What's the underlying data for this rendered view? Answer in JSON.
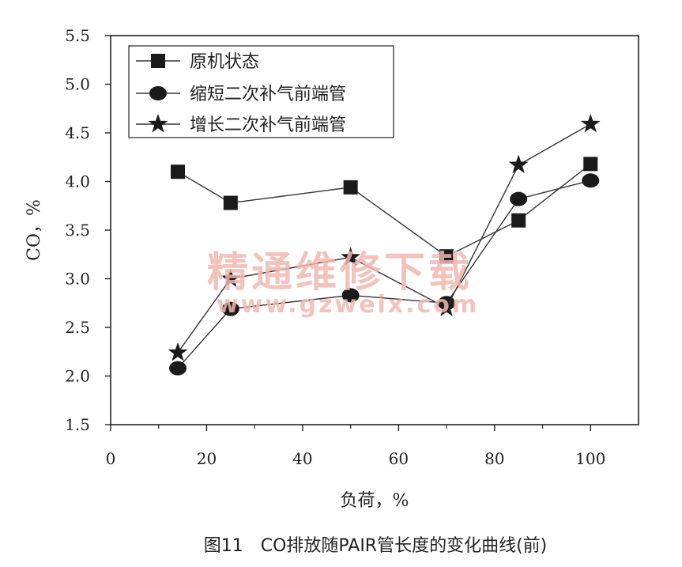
{
  "caption": "图11　CO排放随PAIR管长度的变化曲线(前)",
  "watermark": {
    "line1": "精通维修下载",
    "line2": "www.gzweix.com",
    "color": "#f2b8b0"
  },
  "chart_data": {
    "type": "line",
    "title": "",
    "xlabel": "负荷，%",
    "ylabel": "CO，%",
    "xlim": [
      0,
      110
    ],
    "ylim": [
      1.5,
      5.5
    ],
    "xticks": [
      "0",
      "20",
      "40",
      "60",
      "80",
      "100"
    ],
    "yticks": [
      "1.5",
      "2.0",
      "2.5",
      "3.0",
      "3.5",
      "4.0",
      "4.5",
      "5.0",
      "5.5"
    ],
    "grid": false,
    "legend_position": "top-left",
    "series": [
      {
        "name": "原机状态",
        "marker": "square",
        "x": [
          14,
          25,
          50,
          70,
          85,
          100
        ],
        "y": [
          4.1,
          3.78,
          3.94,
          3.23,
          3.6,
          4.18
        ]
      },
      {
        "name": "缩短二次补气前端管",
        "marker": "circle",
        "x": [
          14,
          25,
          50,
          70,
          85,
          100
        ],
        "y": [
          2.08,
          2.69,
          2.83,
          2.75,
          3.82,
          4.01
        ]
      },
      {
        "name": "增长二次补气前端管",
        "marker": "star",
        "x": [
          14,
          25,
          50,
          70,
          85,
          100
        ],
        "y": [
          2.24,
          3.0,
          3.22,
          2.7,
          4.17,
          4.59
        ]
      }
    ]
  }
}
